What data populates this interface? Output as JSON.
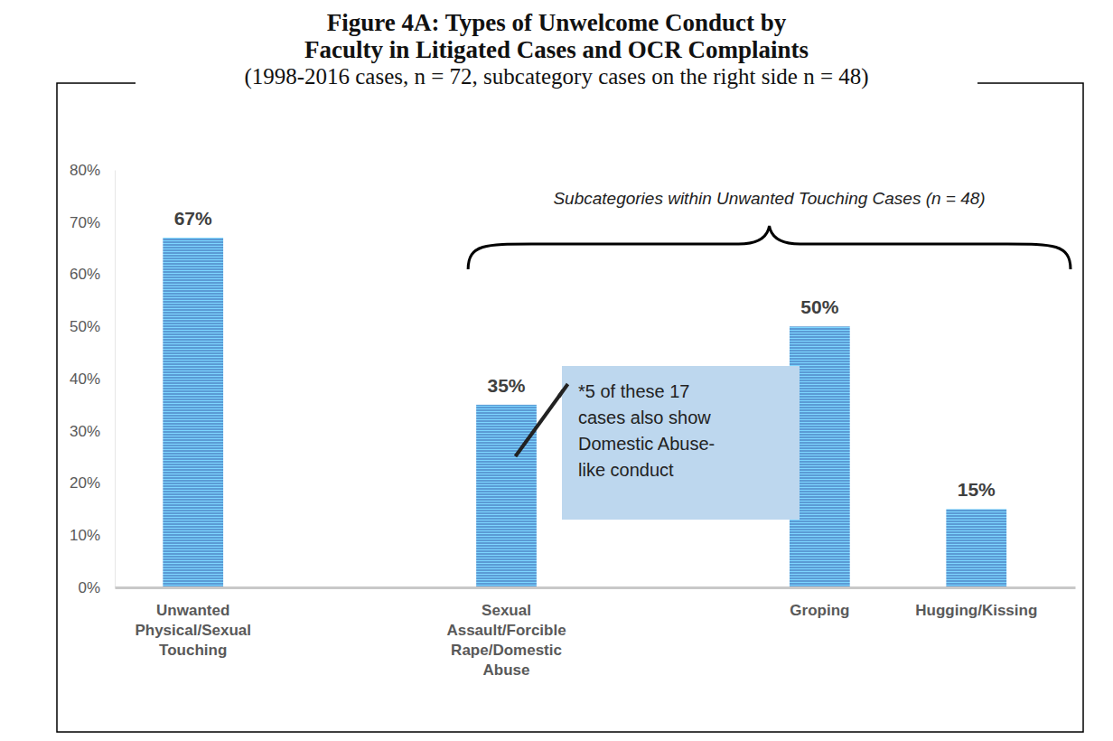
{
  "chart_data": {
    "type": "bar",
    "title": [
      "Figure 4A: Types of Unwelcome Conduct by",
      "Faculty in Litigated Cases and OCR Complaints"
    ],
    "subtitle": "(1998-2016 cases, n = 72, subcategory cases on the right side n = 48)",
    "categories": [
      "Unwanted Physical/Sexual Touching",
      "Sexual Assault/Forcible Rape/Domestic Abuse",
      "Groping",
      "Hugging/Kissing"
    ],
    "values": [
      67,
      35,
      50,
      15
    ],
    "value_labels": [
      "67%",
      "35%",
      "50%",
      "15%"
    ],
    "color": "#5b9bd5",
    "ylim": [
      0,
      80
    ],
    "yticks": [
      {
        "value": 0,
        "label": "0%"
      },
      {
        "value": 10,
        "label": "10%"
      },
      {
        "value": 20,
        "label": "20%"
      },
      {
        "value": 30,
        "label": "30%"
      },
      {
        "value": 40,
        "label": "40%"
      },
      {
        "value": 50,
        "label": "50%"
      },
      {
        "value": 60,
        "label": "60%"
      },
      {
        "value": 70,
        "label": "70%"
      },
      {
        "value": 80,
        "label": "80%"
      }
    ],
    "grid": false,
    "data_labels": true,
    "annotations": [
      {
        "text": "Subcategories within Unwanted Touching Cases (n = 48)"
      },
      {
        "text": [
          "*5 of these 17",
          "cases also show",
          "Domestic Abuse-",
          "like conduct"
        ]
      }
    ]
  }
}
